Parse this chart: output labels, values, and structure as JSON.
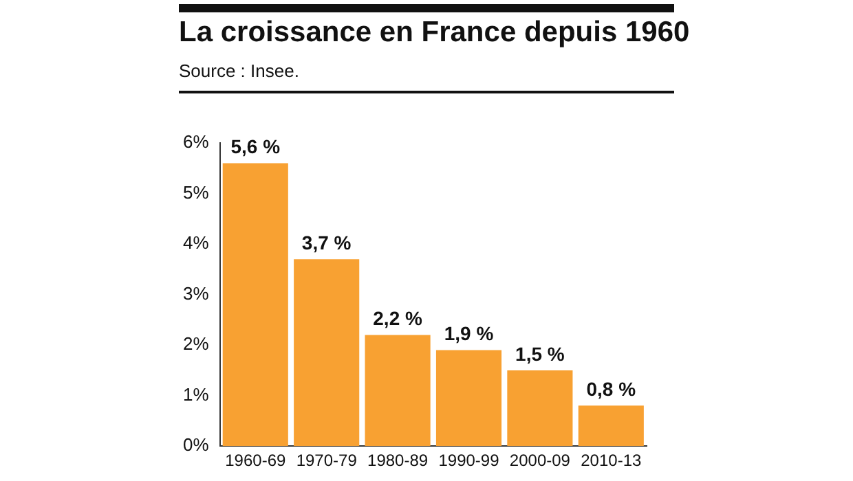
{
  "chart_data": {
    "type": "bar",
    "title": "La croissance en France depuis 1960",
    "subtitle": "Source : Insee.",
    "categories": [
      "1960-69",
      "1970-79",
      "1980-89",
      "1990-99",
      "2000-09",
      "2010-13"
    ],
    "values": [
      5.6,
      3.7,
      2.2,
      1.9,
      1.5,
      0.8
    ],
    "value_labels": [
      "5,6 %",
      "3,7 %",
      "2,2 %",
      "1,9 %",
      "1,5 %",
      "0,8 %"
    ],
    "color": "#f8a132",
    "ylim": [
      0,
      6
    ],
    "yticks": [
      {
        "value": 0,
        "label": "0%"
      },
      {
        "value": 1,
        "label": "1%"
      },
      {
        "value": 2,
        "label": "2%"
      },
      {
        "value": 3,
        "label": "3%"
      },
      {
        "value": 4,
        "label": "4%"
      },
      {
        "value": 5,
        "label": "5%"
      },
      {
        "value": 6,
        "label": "6%"
      }
    ],
    "grid": false,
    "legend": false
  }
}
